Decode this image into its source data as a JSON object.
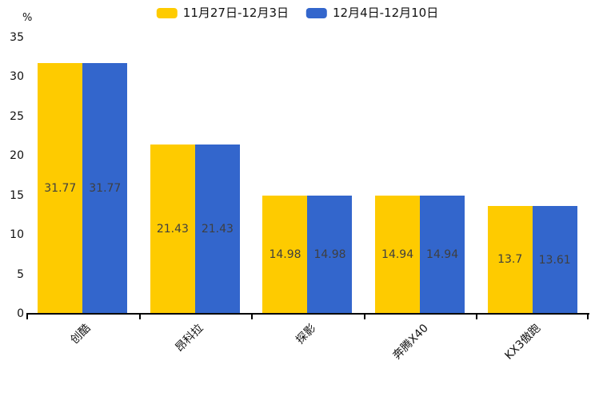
{
  "chart_data": {
    "type": "bar",
    "categories": [
      "创酷",
      "昂科拉",
      "探影",
      "奔腾X40",
      "KX3傲跑"
    ],
    "series": [
      {
        "name": "11月27日-12月3日",
        "color": "#fecb00",
        "values": [
          31.77,
          21.43,
          14.98,
          14.94,
          13.7
        ]
      },
      {
        "name": "12月4日-12月10日",
        "color": "#3366cc",
        "values": [
          31.77,
          21.43,
          14.98,
          14.94,
          13.61
        ]
      }
    ],
    "title": "",
    "xlabel": "",
    "ylabel": "%",
    "ylim": [
      0,
      35
    ],
    "yticks": [
      0,
      5,
      10,
      15,
      20,
      25,
      30,
      35
    ],
    "grid": false,
    "legend_position": "top",
    "value_labels": true,
    "value_label_color": "#3f3f3f",
    "axis_color": "#000000"
  }
}
